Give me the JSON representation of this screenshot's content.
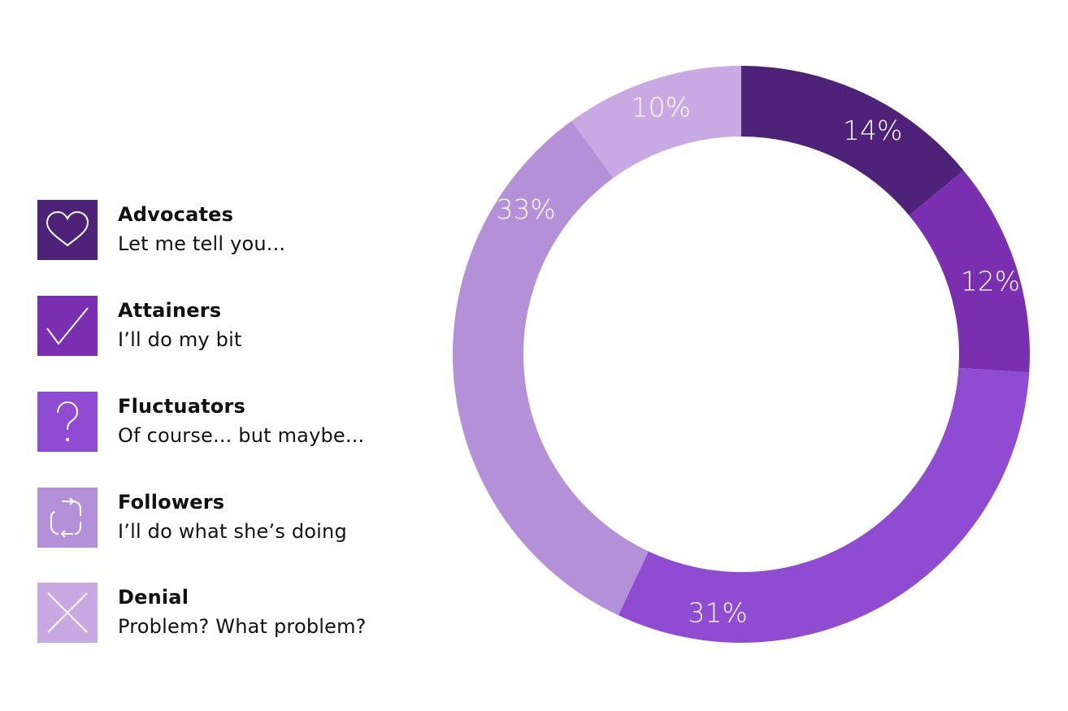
{
  "chart_data": {
    "type": "pie",
    "donut": true,
    "legend_position": "left",
    "categories": [
      "Advocates",
      "Attainers",
      "Fluctuators",
      "Followers",
      "Denial"
    ],
    "values": [
      14,
      12,
      31,
      33,
      10
    ],
    "value_labels": [
      "14%",
      "12%",
      "31%",
      "33%",
      "10%"
    ],
    "descriptions": [
      "Let me tell you...",
      "I’ll do my bit",
      "Of course... but maybe...",
      "I’ll do what she’s doing",
      "Problem? What problem?"
    ],
    "colors": [
      "#4e2278",
      "#7a2fb0",
      "#8f4bd2",
      "#b490d8",
      "#c8a9e3"
    ],
    "icons": [
      "heart-icon",
      "check-icon",
      "question-icon",
      "repeat-icon",
      "cross-icon"
    ]
  }
}
